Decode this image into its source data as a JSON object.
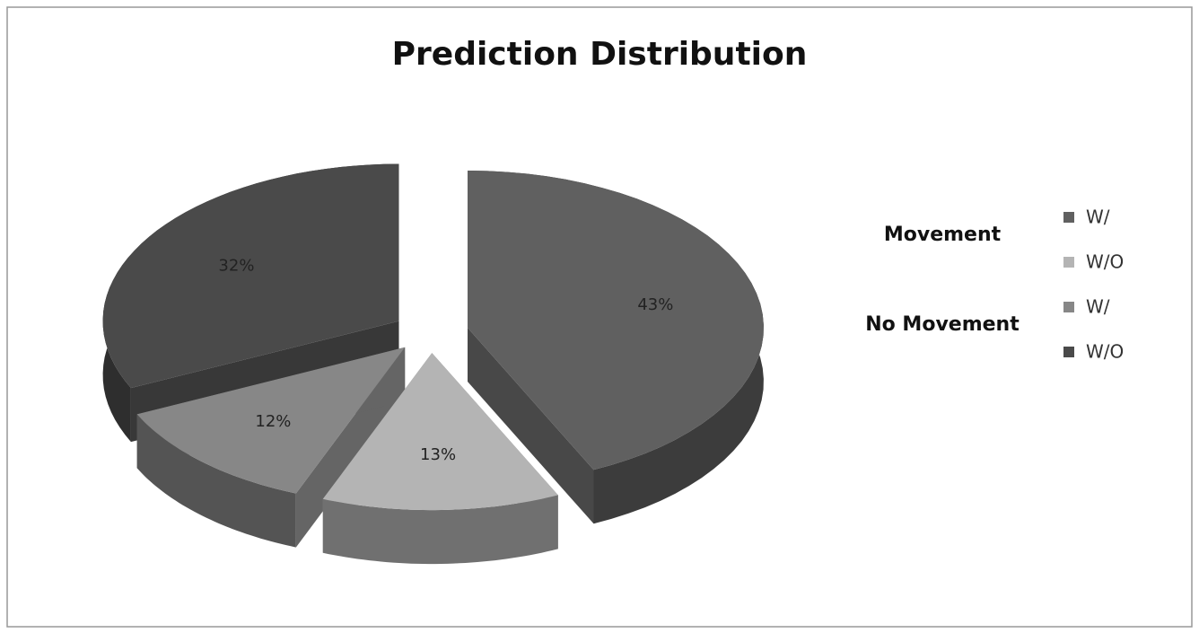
{
  "chart_data": {
    "type": "pie",
    "title": "Prediction Distribution",
    "groups": [
      {
        "name": "Movement",
        "categories": [
          "W/",
          "W/O"
        ],
        "values": [
          43,
          13
        ],
        "value_labels": [
          "43%",
          "13%"
        ],
        "colors": [
          "#606060",
          "#b4b4b4"
        ]
      },
      {
        "name": "No Movement",
        "categories": [
          "W/",
          "W/O"
        ],
        "values": [
          12,
          32
        ],
        "value_labels": [
          "12%",
          "32%"
        ],
        "colors": [
          "#878787",
          "#4a4a4a"
        ]
      }
    ]
  }
}
